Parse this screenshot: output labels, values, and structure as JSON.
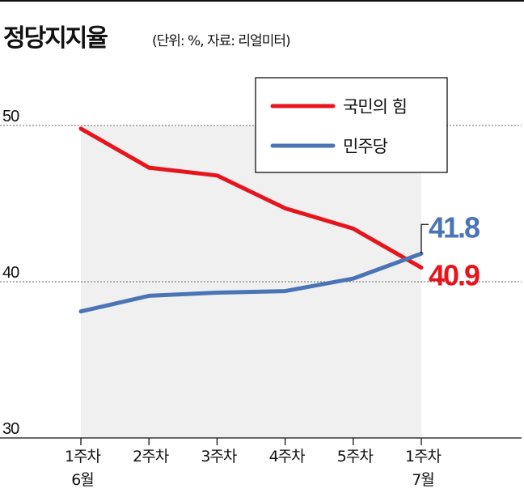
{
  "chart_data": {
    "type": "line",
    "title": "정당지지율",
    "subtitle": "(단위: %, 자료: 리얼미터)",
    "categories": [
      [
        "1주차",
        "6월"
      ],
      [
        "2주차"
      ],
      [
        "3주차"
      ],
      [
        "4주차"
      ],
      [
        "5주차"
      ],
      [
        "1주차",
        "7월"
      ]
    ],
    "ylim": [
      30,
      50
    ],
    "yticks": [
      30,
      40,
      50
    ],
    "grid": "dashed horizontal at 40 and 50",
    "legend_position": "top-right",
    "shaded_area": true,
    "series": [
      {
        "name": "국민의 힘",
        "color": "#e8141c",
        "values": [
          49.8,
          47.3,
          46.8,
          44.7,
          43.4,
          40.9
        ],
        "end_label": "40.9"
      },
      {
        "name": "민주당",
        "color": "#4a74b4",
        "values": [
          38.1,
          39.1,
          39.3,
          39.4,
          40.2,
          41.8
        ],
        "end_label": "41.8"
      }
    ]
  }
}
